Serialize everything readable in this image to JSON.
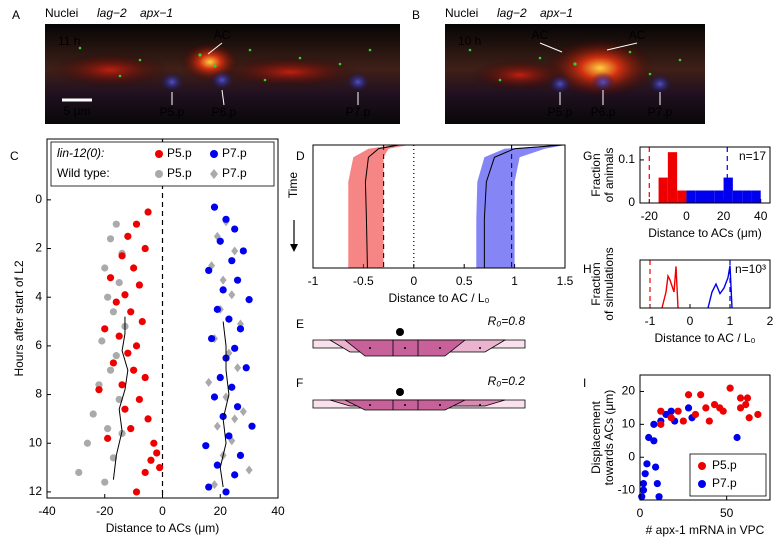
{
  "images": [
    {
      "panel": "A",
      "channels": [
        {
          "name": "Nuclei",
          "color": "#3030ff"
        },
        {
          "name": "lag−2",
          "color": "#ff1010"
        },
        {
          "name": "apx−1",
          "color": "#10d010"
        }
      ],
      "time": "11 h",
      "labels": [
        "AC",
        "P5.p",
        "P6.p",
        "P7.p"
      ],
      "scale_bar": "5 μm"
    },
    {
      "panel": "B",
      "channels": [
        {
          "name": "Nuclei",
          "color": "#3030ff"
        },
        {
          "name": "lag−2",
          "color": "#ff1010"
        },
        {
          "name": "apx−1",
          "color": "#10d010"
        }
      ],
      "time": "10 h",
      "labels": [
        "AC",
        "AC",
        "P5.p",
        "P6.p",
        "P7.p"
      ]
    }
  ],
  "diagrams": [
    {
      "panel": "E",
      "label": "R₀=0.8"
    },
    {
      "panel": "F",
      "label": "R₀=0.2"
    }
  ],
  "chart_data": [
    {
      "panel": "C",
      "type": "scatter",
      "xlabel": "Distance to ACs (μm)",
      "ylabel": "Hours after start of L2",
      "xlim": [
        -40,
        40
      ],
      "xticks": [
        -40,
        -20,
        0,
        20,
        40
      ],
      "ylim": [
        -2.5,
        12.25
      ],
      "yticks": [
        0,
        2,
        4,
        6,
        8,
        10,
        12
      ],
      "y_inverted": true,
      "legend": "top",
      "legend_groups": [
        "lin-12(0):",
        "Wild type:"
      ],
      "reference_lines": [
        {
          "value": 0,
          "color": "#000000",
          "style": "dashed"
        }
      ],
      "series": [
        {
          "name": "P5.p",
          "color": "#ee0000",
          "marker": "circle",
          "x": [
            -5,
            -9,
            -12,
            -6,
            -14,
            -10,
            -18,
            -8,
            -13,
            -16,
            -11,
            -7,
            -20,
            -15,
            -9,
            -12,
            -17,
            -10,
            -6,
            -14,
            -22,
            -8,
            -13,
            -5,
            -11,
            -3,
            -2,
            -4,
            -1,
            -6,
            -19,
            -9
          ],
          "values": [
            0.5,
            1,
            1.5,
            2,
            2.3,
            2.8,
            3.2,
            3.5,
            3.9,
            4.2,
            4.6,
            5,
            5.3,
            5.6,
            6,
            6.3,
            6.7,
            7,
            7.3,
            7.6,
            7.8,
            8.2,
            8.6,
            9,
            9.4,
            10,
            10.4,
            10.7,
            11,
            11.2,
            9.8,
            12
          ]
        },
        {
          "name": "P7.p",
          "color": "#0000ee",
          "marker": "circle",
          "x": [
            18,
            22,
            25,
            20,
            28,
            24,
            16,
            26,
            21,
            30,
            19,
            23,
            27,
            17,
            25,
            22,
            29,
            20,
            24,
            18,
            26,
            21,
            31,
            23,
            15,
            27,
            19,
            25,
            16,
            22
          ],
          "values": [
            0.3,
            0.8,
            1.2,
            1.7,
            2.1,
            2.5,
            2.9,
            3.3,
            3.7,
            4.1,
            4.5,
            4.9,
            5.3,
            5.7,
            6.1,
            6.5,
            6.9,
            7.3,
            7.7,
            8.1,
            8.5,
            8.9,
            9.3,
            9.7,
            10.1,
            10.5,
            10.9,
            11.3,
            11.8,
            12
          ]
        },
        {
          "name": "P5.p",
          "color": "#aaaaaa",
          "marker": "circle",
          "x": [
            -16,
            -18,
            -14,
            -20,
            -15,
            -19,
            -17,
            -13,
            -21,
            -16,
            -18,
            -22,
            -15,
            -24,
            -19,
            -26,
            -17,
            -29,
            -20,
            -14
          ],
          "values": [
            1,
            1.6,
            2.2,
            2.8,
            3.4,
            4,
            4.6,
            5.2,
            5.8,
            6.4,
            7,
            7.6,
            8.2,
            8.8,
            9.4,
            10,
            10.6,
            11.2,
            11.6,
            9.6
          ]
        },
        {
          "name": "P7.p",
          "color": "#aaaaaa",
          "marker": "diamond",
          "x": [
            22,
            19,
            25,
            17,
            21,
            24,
            20,
            27,
            18,
            23,
            26,
            16,
            22,
            28,
            19,
            24,
            21,
            30,
            18,
            25
          ],
          "values": [
            0.9,
            1.5,
            2.1,
            2.7,
            3.3,
            3.9,
            4.5,
            5.1,
            5.7,
            6.3,
            6.9,
            7.5,
            8.1,
            8.7,
            9.3,
            9.9,
            10.5,
            11.1,
            11.7,
            9
          ]
        }
      ],
      "lines": [
        {
          "color": "#000000",
          "x": [
            -13,
            -13,
            -14,
            -12,
            -13,
            -15,
            -14,
            -16,
            -17
          ],
          "values": [
            4.8,
            5.5,
            6.2,
            7,
            7.8,
            8.6,
            9.5,
            10.5,
            11.5
          ]
        },
        {
          "color": "#000000",
          "x": [
            21,
            22,
            22,
            23,
            21,
            22,
            20,
            21
          ],
          "values": [
            5,
            6,
            7,
            8,
            9,
            10,
            11,
            11.8
          ]
        }
      ]
    },
    {
      "panel": "D",
      "type": "band",
      "xlabel": "Distance to AC / L₀",
      "ylabel": "Time",
      "xlim": [
        -1,
        1.5
      ],
      "xticks": [
        -1,
        -0.5,
        0,
        0.5,
        1,
        1.5
      ],
      "ylim": [
        0,
        1
      ],
      "y_inverted": true,
      "reference_lines": [
        {
          "value": -0.3,
          "color": "#000000",
          "style": "dashed"
        },
        {
          "value": 0,
          "color": "#000000",
          "style": "dotted"
        },
        {
          "value": 0.97,
          "color": "#000000",
          "style": "dashed"
        }
      ],
      "t": [
        0,
        0.03,
        0.1,
        0.3,
        0.6,
        1
      ],
      "bands": [
        {
          "color": "#ee2020",
          "lower": [
            -0.2,
            -0.45,
            -0.6,
            -0.65,
            -0.65,
            -0.65
          ],
          "upper": [
            -0.05,
            -0.25,
            -0.3,
            -0.3,
            -0.3,
            -0.3
          ],
          "mean": [
            -0.15,
            -0.35,
            -0.45,
            -0.48,
            -0.47,
            -0.46
          ]
        },
        {
          "color": "#2020ee",
          "lower": [
            1.45,
            0.9,
            0.7,
            0.63,
            0.62,
            0.62
          ],
          "upper": [
            1.5,
            1.3,
            1.05,
            1,
            1,
            1
          ],
          "mean": [
            1.48,
            1,
            0.8,
            0.72,
            0.7,
            0.7
          ]
        }
      ]
    },
    {
      "panel": "G",
      "type": "histogram",
      "xlabel": "Distance to ACs (μm)",
      "ylabel": [
        "Fraction",
        "of animals"
      ],
      "xlim": [
        -25,
        45
      ],
      "xticks": [
        -20,
        0,
        20,
        40
      ],
      "ylim": [
        0,
        0.13
      ],
      "yticks": [
        0,
        0.1
      ],
      "annotation": "n=17",
      "reference_lines": [
        {
          "value": -20,
          "color": "#ee0000",
          "style": "dashed"
        },
        {
          "value": 22,
          "color": "#0000ee",
          "style": "dashed"
        }
      ],
      "bins": [
        -15,
        -10,
        -5,
        0,
        5,
        10,
        15,
        20,
        25,
        30,
        35,
        40,
        45
      ],
      "series": [
        {
          "color": "#ee0000",
          "values": [
            0.059,
            0.118,
            0.029,
            0,
            0,
            0,
            0,
            0,
            0,
            0,
            0,
            0
          ]
        },
        {
          "color": "#0000ee",
          "values": [
            0,
            0,
            0,
            0.029,
            0.029,
            0.029,
            0.029,
            0.059,
            0.029,
            0.029,
            0.029,
            0
          ]
        }
      ]
    },
    {
      "panel": "H",
      "type": "line",
      "xlabel": "Distance to AC / L₀",
      "ylabel": [
        "Fraction",
        "of simulations"
      ],
      "xlim": [
        -1.25,
        2
      ],
      "xticks": [
        -1,
        0,
        1,
        2
      ],
      "ylim": [
        0,
        6
      ],
      "annotation": "n=10³",
      "reference_lines": [
        {
          "value": -1,
          "color": "#ee0000",
          "style": "dashed"
        },
        {
          "value": 1,
          "color": "#0000ee",
          "style": "dashed"
        }
      ],
      "series": [
        {
          "color": "#ee0000",
          "x": [
            -0.7,
            -0.6,
            -0.55,
            -0.5,
            -0.4,
            -0.35,
            -0.3
          ],
          "values": [
            0,
            2,
            4,
            3.5,
            2,
            5.2,
            0
          ]
        },
        {
          "color": "#0000ee",
          "x": [
            0.45,
            0.55,
            0.65,
            0.75,
            0.85,
            0.95,
            1,
            1.05
          ],
          "values": [
            0,
            2,
            3,
            1.8,
            2.5,
            3.8,
            5.3,
            0
          ]
        }
      ]
    },
    {
      "panel": "I",
      "type": "scatter",
      "xlabel": "# apx-1 mRNA in VPC",
      "ylabel": [
        "Displacement",
        "towards ACs (μm)"
      ],
      "xlim": [
        0,
        75
      ],
      "xticks": [
        0,
        50
      ],
      "ylim": [
        -13,
        25
      ],
      "yticks": [
        -10,
        0,
        10,
        20
      ],
      "legend": "lower right",
      "series": [
        {
          "name": "P5.p",
          "color": "#ee0000",
          "marker": "circle",
          "x": [
            12,
            12,
            22,
            25,
            28,
            32,
            35,
            40,
            43,
            46,
            48,
            52,
            58,
            58,
            61,
            63,
            62,
            68,
            38,
            18
          ],
          "values": [
            14,
            10,
            14,
            11,
            19,
            13,
            19,
            11,
            16,
            15,
            14,
            21,
            15,
            18,
            16,
            12,
            18,
            13,
            15,
            12
          ]
        },
        {
          "name": "P7.p",
          "color": "#0000ee",
          "marker": "circle",
          "x": [
            1,
            2,
            2,
            3,
            4,
            5,
            8,
            9,
            10,
            11,
            15,
            18,
            12,
            8,
            20,
            28,
            56,
            30
          ],
          "values": [
            -12,
            -8,
            -10,
            -5,
            -2,
            6,
            5,
            -3,
            -8,
            -12,
            13,
            14,
            11,
            10,
            11,
            15,
            6,
            12
          ]
        }
      ]
    }
  ]
}
